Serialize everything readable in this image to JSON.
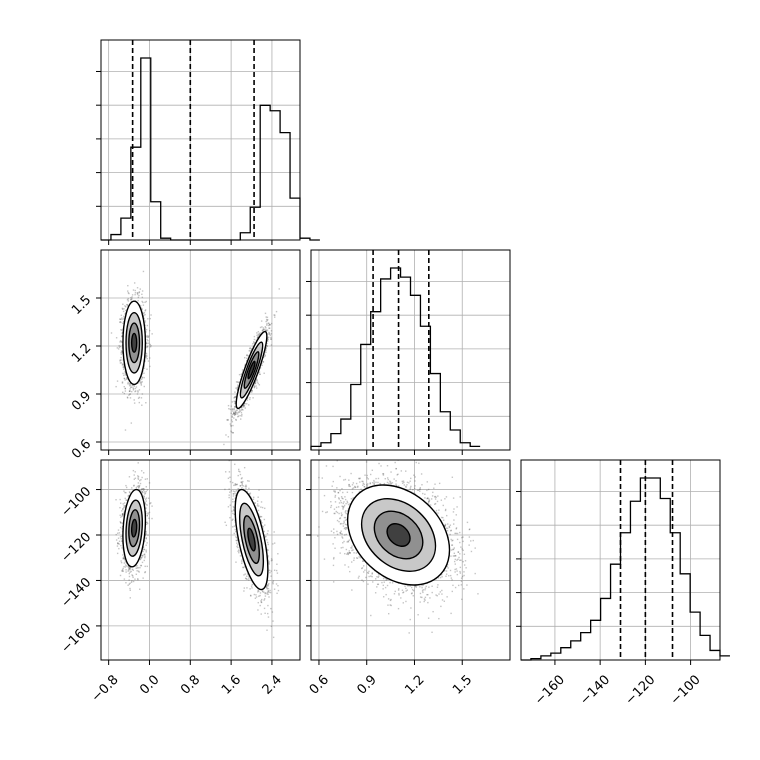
{
  "chart_data": {
    "type": "scatter",
    "subtype": "corner-plot",
    "grid": true,
    "parameters": [
      {
        "range": [
          -0.95,
          2.95
        ],
        "ticks": [
          -0.8,
          0.0,
          0.8,
          1.6,
          2.4
        ],
        "tick_labels": [
          "−0.8",
          "0.0",
          "0.8",
          "1.6",
          "2.4"
        ],
        "quantiles": [
          -0.33,
          0.8,
          2.05
        ]
      },
      {
        "range": [
          0.55,
          1.8
        ],
        "ticks": [
          0.6,
          0.9,
          1.2,
          1.5
        ],
        "tick_labels": [
          "0.6",
          "0.9",
          "1.2",
          "1.5"
        ],
        "quantiles": [
          0.94,
          1.1,
          1.29
        ]
      },
      {
        "range": [
          -175,
          -87
        ],
        "ticks": [
          -160,
          -140,
          -120,
          -100
        ],
        "tick_labels": [
          "−160",
          "−140",
          "−120",
          "−100"
        ],
        "quantiles": [
          -131,
          -120,
          -108
        ]
      }
    ],
    "histograms": [
      {
        "edges_start": -0.95,
        "bin_width": 0.195,
        "counts": [
          0,
          3,
          12,
          51,
          100,
          21,
          1,
          0,
          0,
          0,
          0,
          0,
          0,
          0,
          4,
          18,
          74,
          71,
          59,
          23,
          1,
          0
        ]
      },
      {
        "edges_start": 0.55,
        "bin_width": 0.0625,
        "counts": [
          2,
          4,
          9,
          17,
          36,
          58,
          76,
          94,
          100,
          95,
          85,
          68,
          42,
          21,
          11,
          4,
          2
        ]
      },
      {
        "edges_start": -175,
        "bin_width": 4.4,
        "counts": [
          0,
          1,
          3,
          5,
          9,
          14,
          20,
          29,
          45,
          70,
          93,
          116,
          133,
          133,
          118,
          93,
          63,
          35,
          18,
          7,
          3
        ]
      }
    ],
    "clusters_0_1": [
      {
        "mean": [
          -0.3,
          1.22
        ],
        "sd": [
          0.11,
          0.13
        ],
        "rho": 0.0,
        "weight": 0.5
      },
      {
        "mean": [
          2.0,
          1.05
        ],
        "sd": [
          0.15,
          0.12
        ],
        "rho": 0.88,
        "weight": 0.5
      }
    ],
    "clusters_0_2": [
      {
        "mean": [
          -0.3,
          -117
        ],
        "sd": [
          0.11,
          8.5
        ],
        "rho": 0.2,
        "weight": 0.5
      },
      {
        "mean": [
          2.0,
          -122
        ],
        "sd": [
          0.16,
          11
        ],
        "rho": -0.6,
        "weight": 0.5
      }
    ],
    "clusters_1_2": [
      {
        "mean": [
          1.1,
          -120
        ],
        "sd": [
          0.16,
          11
        ],
        "rho": -0.3,
        "weight": 1.0
      }
    ]
  }
}
